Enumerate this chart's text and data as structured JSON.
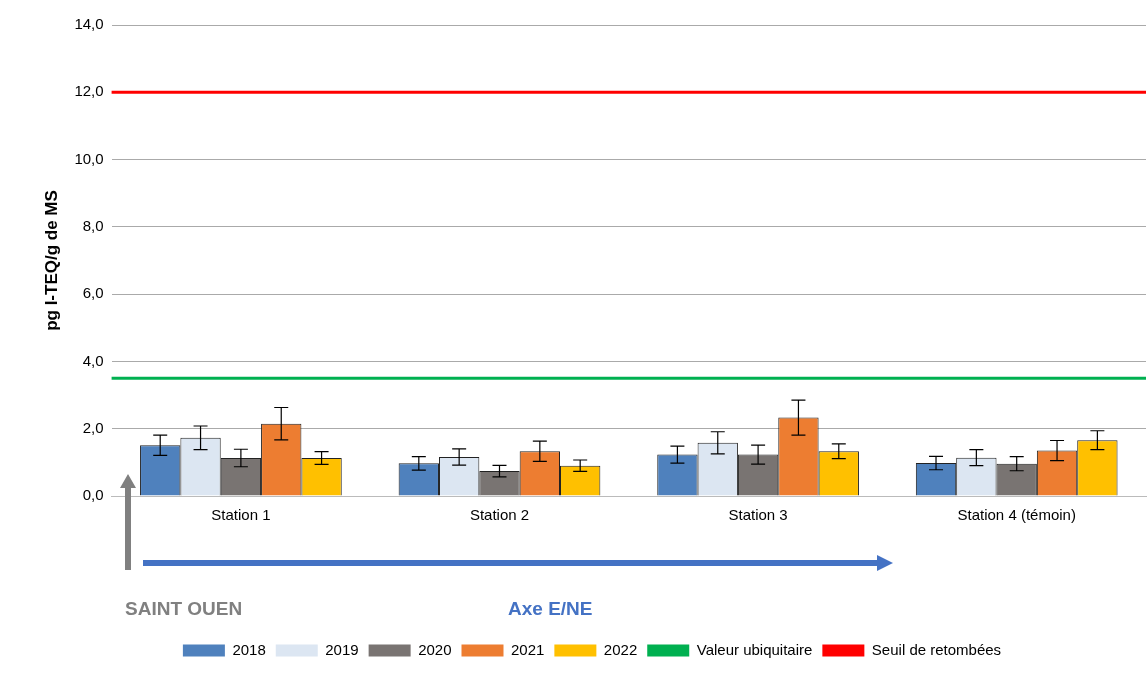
{
  "chart_data": {
    "type": "bar",
    "ylabel": "pg I-TEQ/g de MS",
    "categories": [
      "Station 1",
      "Station 2",
      "Station 3",
      "Station 4 (témoin)"
    ],
    "series": [
      {
        "name": "2018",
        "color": "#4f81bd",
        "values": [
          1.51,
          0.97,
          1.23,
          0.98
        ],
        "errors": [
          0.3,
          0.2,
          0.25,
          0.2
        ]
      },
      {
        "name": "2019",
        "color": "#dce6f2",
        "values": [
          1.73,
          1.16,
          1.58,
          1.14
        ],
        "errors": [
          0.35,
          0.24,
          0.33,
          0.24
        ]
      },
      {
        "name": "2020",
        "color": "#797472",
        "values": [
          1.13,
          0.74,
          1.23,
          0.96
        ],
        "errors": [
          0.26,
          0.17,
          0.28,
          0.21
        ]
      },
      {
        "name": "2021",
        "color": "#ed7d31",
        "values": [
          2.15,
          1.33,
          2.33,
          1.35
        ],
        "errors": [
          0.48,
          0.3,
          0.52,
          0.3
        ]
      },
      {
        "name": "2022",
        "color": "#ffc000",
        "values": [
          1.13,
          0.9,
          1.33,
          1.66
        ],
        "errors": [
          0.19,
          0.17,
          0.22,
          0.28
        ]
      }
    ],
    "ylim": [
      0,
      14
    ],
    "yticks": [
      {
        "value": 0,
        "label": "0,0"
      },
      {
        "value": 2,
        "label": "2,0"
      },
      {
        "value": 4,
        "label": "4,0"
      },
      {
        "value": 6,
        "label": "6,0"
      },
      {
        "value": 8,
        "label": "8,0"
      },
      {
        "value": 10,
        "label": "10,0"
      },
      {
        "value": 12,
        "label": "12,0"
      },
      {
        "value": 14,
        "label": "14,0"
      }
    ],
    "ref_lines": [
      {
        "axis": "y",
        "value": 3.5,
        "label": "Valeur ubiquitaire",
        "color": "#00b050"
      },
      {
        "axis": "y",
        "value": 12,
        "label": "Seuil de retombées",
        "color": "#ff0000"
      }
    ],
    "annotations": [
      "SAINT OUEN",
      "Axe E/NE"
    ],
    "grid": "y",
    "legend": "bottom"
  }
}
